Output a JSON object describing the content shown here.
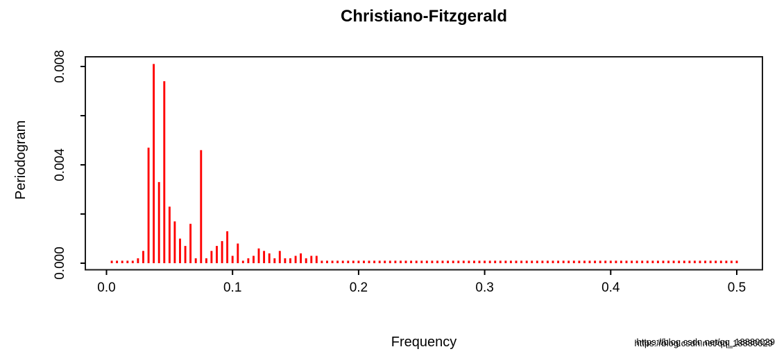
{
  "page": {
    "background": "#ffffff"
  },
  "watermark": {
    "text": "https://blog.csdn.net/qq_18880029",
    "color": "#dcdcdc",
    "ghost_color": "#ebebeb"
  },
  "chart_data": {
    "type": "bar",
    "subtype": "periodogram-needles",
    "title": "Christiano-Fitzgerald",
    "xlabel": "Frequency",
    "ylabel": "Periodogram",
    "xlim": [
      0,
      0.5
    ],
    "ylim": [
      0,
      0.0082
    ],
    "grid": false,
    "legend": "none",
    "series_color": "#ff0000",
    "axis_color": "#000000",
    "x_ticks": [
      0.0,
      0.1,
      0.2,
      0.3,
      0.4,
      0.5
    ],
    "x_tick_labels": [
      "0.0",
      "0.1",
      "0.2",
      "0.3",
      "0.4",
      "0.5"
    ],
    "y_ticks": [
      0.0,
      0.002,
      0.004,
      0.006,
      0.008
    ],
    "y_tick_labels": [
      "0.000",
      "",
      "0.004",
      "",
      "0.008"
    ],
    "frequencies": [
      0.00417,
      0.00833,
      0.0125,
      0.01667,
      0.02083,
      0.025,
      0.02917,
      0.03333,
      0.0375,
      0.04167,
      0.04583,
      0.05,
      0.05417,
      0.05833,
      0.0625,
      0.06667,
      0.07083,
      0.075,
      0.07917,
      0.08333,
      0.0875,
      0.09167,
      0.09583,
      0.1,
      0.10417,
      0.10833,
      0.1125,
      0.11667,
      0.12083,
      0.125,
      0.12917,
      0.13333,
      0.1375,
      0.14167,
      0.14583,
      0.15,
      0.15417,
      0.15833,
      0.1625,
      0.16667,
      0.17083,
      0.175,
      0.17917,
      0.18333,
      0.1875,
      0.19167,
      0.19583,
      0.2,
      0.20417,
      0.20833,
      0.2125,
      0.21667,
      0.22083,
      0.225,
      0.22917,
      0.23333,
      0.2375,
      0.24167,
      0.24583,
      0.25,
      0.25417,
      0.25833,
      0.2625,
      0.26667,
      0.27083,
      0.275,
      0.27917,
      0.28333,
      0.2875,
      0.29167,
      0.29583,
      0.3,
      0.30417,
      0.30833,
      0.3125,
      0.31667,
      0.32083,
      0.325,
      0.32917,
      0.33333,
      0.3375,
      0.34167,
      0.34583,
      0.35,
      0.35417,
      0.35833,
      0.3625,
      0.36667,
      0.37083,
      0.375,
      0.37917,
      0.38333,
      0.3875,
      0.39167,
      0.39583,
      0.4,
      0.40417,
      0.40833,
      0.4125,
      0.41667,
      0.42083,
      0.425,
      0.42917,
      0.43333,
      0.4375,
      0.44167,
      0.44583,
      0.45,
      0.45417,
      0.45833,
      0.4625,
      0.46667,
      0.47083,
      0.475,
      0.47917,
      0.48333,
      0.4875,
      0.49167,
      0.49583,
      0.5
    ],
    "values": [
      0.0001,
      0.0001,
      0.0001,
      0.0001,
      0.0001,
      0.0002,
      0.0005,
      0.0047,
      0.0081,
      0.0033,
      0.0074,
      0.0023,
      0.0017,
      0.001,
      0.0007,
      0.0016,
      0.0002,
      0.0046,
      0.0002,
      0.0005,
      0.0007,
      0.0009,
      0.0013,
      0.0003,
      0.0008,
      0.0001,
      0.0002,
      0.0003,
      0.0006,
      0.0005,
      0.0004,
      0.0002,
      0.0005,
      0.0002,
      0.0002,
      0.0003,
      0.0004,
      0.0002,
      0.0003,
      0.0003,
      0.0001,
      0.0001,
      0.0001,
      0.0001,
      0.0001,
      0.0001,
      0.0001,
      0.0001,
      0.0001,
      0.0001,
      0.0001,
      0.0001,
      0.0001,
      0.0001,
      0.0001,
      0.0001,
      0.0001,
      0.0001,
      0.0001,
      0.0001,
      0.0001,
      0.0001,
      0.0001,
      0.0001,
      0.0001,
      0.0001,
      0.0001,
      0.0001,
      0.0001,
      0.0001,
      0.0001,
      0.0001,
      0.0001,
      0.0001,
      0.0001,
      0.0001,
      0.0001,
      0.0001,
      0.0001,
      0.0001,
      0.0001,
      0.0001,
      0.0001,
      0.0001,
      0.0001,
      0.0001,
      0.0001,
      0.0001,
      0.0001,
      0.0001,
      0.0001,
      0.0001,
      0.0001,
      0.0001,
      0.0001,
      0.0001,
      0.0001,
      0.0001,
      0.0001,
      0.0001,
      0.0001,
      0.0001,
      0.0001,
      0.0001,
      0.0001,
      0.0001,
      0.0001,
      0.0001,
      0.0001,
      0.0001,
      0.0001,
      0.0001,
      0.0001,
      0.0001,
      0.0001,
      0.0001,
      0.0001,
      0.0001,
      0.0001,
      0.0001
    ]
  }
}
